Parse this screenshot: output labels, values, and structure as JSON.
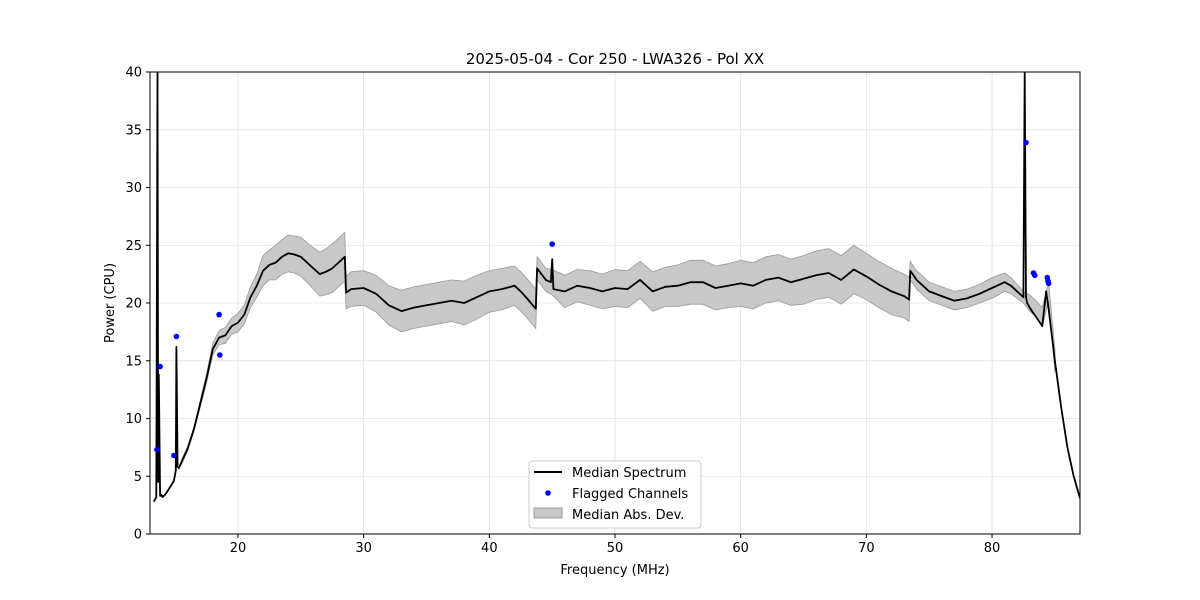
{
  "chart_data": {
    "type": "line",
    "title": "2025-05-04 - Cor 250 - LWA326 - Pol XX",
    "xlabel": "Frequency (MHz)",
    "ylabel": "Power (CPU)",
    "xlim": [
      13,
      87
    ],
    "ylim": [
      0,
      40
    ],
    "xticks": [
      20,
      30,
      40,
      50,
      60,
      70,
      80
    ],
    "yticks": [
      0,
      5,
      10,
      15,
      20,
      25,
      30,
      35,
      40
    ],
    "grid": true,
    "legend_position": "bottom-center",
    "colors": {
      "median": "#000000",
      "flagged": "#0000ff",
      "mad_fill": "#c8c8c8",
      "mad_edge": "#9a9a9a"
    },
    "series": [
      {
        "name": "Median Spectrum",
        "kind": "line",
        "x": [
          13.3,
          13.5,
          13.6,
          13.65,
          13.7,
          13.8,
          13.9,
          14.0,
          14.2,
          14.5,
          14.9,
          15.05,
          15.1,
          15.2,
          15.3,
          15.5,
          16.0,
          16.5,
          17.0,
          17.5,
          18.0,
          18.5,
          19.0,
          19.5,
          20.0,
          20.5,
          21.0,
          21.5,
          22.0,
          22.5,
          23.0,
          23.5,
          24.0,
          24.5,
          25.0,
          25.5,
          26.0,
          26.5,
          27.0,
          27.5,
          28.0,
          28.5,
          28.6,
          29.0,
          30.0,
          31.0,
          32.0,
          33.0,
          34.0,
          35.0,
          36.0,
          37.0,
          38.0,
          39.0,
          40.0,
          41.0,
          42.0,
          42.5,
          43.0,
          43.7,
          43.8,
          44.5,
          44.9,
          45.0,
          45.1,
          46.0,
          47.0,
          48.0,
          49.0,
          50.0,
          51.0,
          52.0,
          53.0,
          54.0,
          55.0,
          56.0,
          57.0,
          58.0,
          59.0,
          60.0,
          61.0,
          62.0,
          63.0,
          64.0,
          65.0,
          66.0,
          67.0,
          68.0,
          69.0,
          70.0,
          71.0,
          72.0,
          73.0,
          73.4,
          73.5,
          74.0,
          75.0,
          76.0,
          77.0,
          78.0,
          79.0,
          80.0,
          81.0,
          81.5,
          82.0,
          82.5,
          82.6,
          82.7,
          82.8,
          83.0,
          83.5,
          84.0,
          84.3,
          84.5,
          85.0,
          85.5,
          86.0,
          86.5,
          87.0
        ],
        "y": [
          2.8,
          3.2,
          40.0,
          4.5,
          13.8,
          3.3,
          3.4,
          3.2,
          3.4,
          3.9,
          4.6,
          5.5,
          16.2,
          5.8,
          5.7,
          6.2,
          7.4,
          9.1,
          11.3,
          13.5,
          16.0,
          17.0,
          17.2,
          18.0,
          18.3,
          19.0,
          20.5,
          21.5,
          22.8,
          23.3,
          23.5,
          24.0,
          24.3,
          24.2,
          24.0,
          23.5,
          23.0,
          22.5,
          22.7,
          23.0,
          23.5,
          24.0,
          20.9,
          21.2,
          21.3,
          20.8,
          19.8,
          19.3,
          19.6,
          19.8,
          20.0,
          20.2,
          20.0,
          20.5,
          21.0,
          21.2,
          21.5,
          21.0,
          20.4,
          19.5,
          23.0,
          22.0,
          21.8,
          23.8,
          21.2,
          21.0,
          21.5,
          21.3,
          21.0,
          21.3,
          21.2,
          22.0,
          21.0,
          21.4,
          21.5,
          21.8,
          21.8,
          21.3,
          21.5,
          21.7,
          21.5,
          22.0,
          22.2,
          21.8,
          22.1,
          22.4,
          22.6,
          22.0,
          22.9,
          22.3,
          21.6,
          21.0,
          20.6,
          20.3,
          22.8,
          22.0,
          21.0,
          20.6,
          20.2,
          20.4,
          20.8,
          21.3,
          21.8,
          21.5,
          21.0,
          20.5,
          40.0,
          20.5,
          20.0,
          19.6,
          18.8,
          18.0,
          21.0,
          19.5,
          15.0,
          11.0,
          7.5,
          5.0,
          3.1
        ]
      },
      {
        "name": "Flagged Channels",
        "kind": "scatter",
        "x": [
          13.55,
          13.8,
          14.9,
          15.1,
          18.5,
          18.55,
          45.0,
          82.7,
          83.3,
          83.4,
          84.4,
          84.45,
          84.5
        ],
        "y": [
          7.3,
          14.5,
          6.8,
          17.1,
          19.0,
          15.5,
          25.1,
          33.9,
          22.6,
          22.4,
          22.2,
          21.9,
          21.7
        ]
      },
      {
        "name": "Median Abs. Dev.",
        "kind": "band",
        "x": [
          15.5,
          16.0,
          16.5,
          17.0,
          17.5,
          18.0,
          18.5,
          19.0,
          19.5,
          20.0,
          20.5,
          21.0,
          21.5,
          22.0,
          22.5,
          23.0,
          23.5,
          24.0,
          24.5,
          25.0,
          25.5,
          26.0,
          26.5,
          27.0,
          27.5,
          28.0,
          28.5,
          28.6,
          29.0,
          30.0,
          31.0,
          32.0,
          33.0,
          34.0,
          35.0,
          36.0,
          37.0,
          38.0,
          39.0,
          40.0,
          41.0,
          42.0,
          42.5,
          43.0,
          43.7,
          43.8,
          44.5,
          45.0,
          46.0,
          47.0,
          48.0,
          49.0,
          50.0,
          51.0,
          52.0,
          53.0,
          54.0,
          55.0,
          56.0,
          57.0,
          58.0,
          59.0,
          60.0,
          61.0,
          62.0,
          63.0,
          64.0,
          65.0,
          66.0,
          67.0,
          68.0,
          69.0,
          70.0,
          71.0,
          72.0,
          73.0,
          73.4,
          73.5,
          74.0,
          75.0,
          76.0,
          77.0,
          78.0,
          79.0,
          80.0,
          81.0,
          81.5,
          82.0,
          82.5,
          83.0,
          83.5,
          84.0,
          84.5,
          85.0
        ],
        "upper": [
          6.4,
          7.6,
          9.3,
          11.6,
          13.9,
          16.5,
          17.6,
          17.9,
          18.7,
          19.1,
          19.8,
          21.4,
          22.5,
          24.1,
          24.6,
          25.0,
          25.5,
          25.9,
          25.8,
          25.7,
          25.2,
          24.8,
          24.4,
          24.7,
          25.1,
          25.6,
          26.1,
          22.3,
          22.7,
          22.8,
          22.4,
          21.5,
          21.1,
          21.4,
          21.6,
          21.8,
          22.0,
          21.9,
          22.4,
          22.8,
          23.0,
          23.2,
          22.7,
          22.1,
          21.2,
          24.0,
          23.0,
          22.9,
          22.4,
          22.9,
          22.8,
          22.5,
          22.9,
          22.8,
          23.6,
          22.7,
          23.1,
          23.3,
          23.7,
          23.7,
          23.2,
          23.4,
          23.7,
          23.5,
          24.0,
          24.2,
          23.8,
          24.1,
          24.5,
          24.7,
          24.1,
          25.0,
          24.3,
          23.6,
          23.0,
          22.5,
          22.2,
          23.6,
          22.8,
          21.8,
          21.4,
          21.0,
          21.2,
          21.6,
          22.2,
          22.6,
          22.2,
          21.6,
          21.0,
          20.7,
          20.2,
          19.6,
          21.8,
          16.0
        ],
        "lower": [
          6.0,
          7.2,
          8.9,
          11.0,
          13.1,
          15.5,
          16.4,
          16.5,
          17.3,
          17.5,
          18.2,
          19.6,
          20.5,
          21.5,
          22.0,
          22.0,
          22.5,
          22.7,
          22.6,
          22.3,
          21.8,
          21.2,
          20.6,
          20.7,
          20.9,
          21.4,
          21.9,
          19.5,
          19.7,
          19.8,
          19.2,
          18.1,
          17.5,
          17.8,
          18.0,
          18.2,
          18.4,
          18.1,
          18.6,
          19.2,
          19.4,
          19.8,
          19.3,
          18.7,
          17.8,
          22.0,
          21.0,
          20.7,
          19.6,
          20.1,
          19.8,
          19.5,
          19.7,
          19.6,
          20.4,
          19.3,
          19.7,
          19.7,
          19.9,
          19.9,
          19.4,
          19.6,
          19.7,
          19.5,
          20.0,
          20.2,
          19.8,
          19.9,
          20.3,
          20.5,
          19.9,
          20.8,
          20.3,
          19.6,
          19.0,
          18.7,
          18.4,
          22.0,
          21.2,
          20.2,
          19.8,
          19.4,
          19.6,
          20.0,
          20.4,
          21.0,
          20.8,
          20.4,
          20.0,
          19.3,
          18.8,
          18.0,
          20.2,
          14.0
        ]
      }
    ],
    "legend": [
      {
        "label": "Median Spectrum",
        "symbol": "line"
      },
      {
        "label": "Flagged Channels",
        "symbol": "dot"
      },
      {
        "label": "Median Abs. Dev.",
        "symbol": "patch"
      }
    ]
  }
}
